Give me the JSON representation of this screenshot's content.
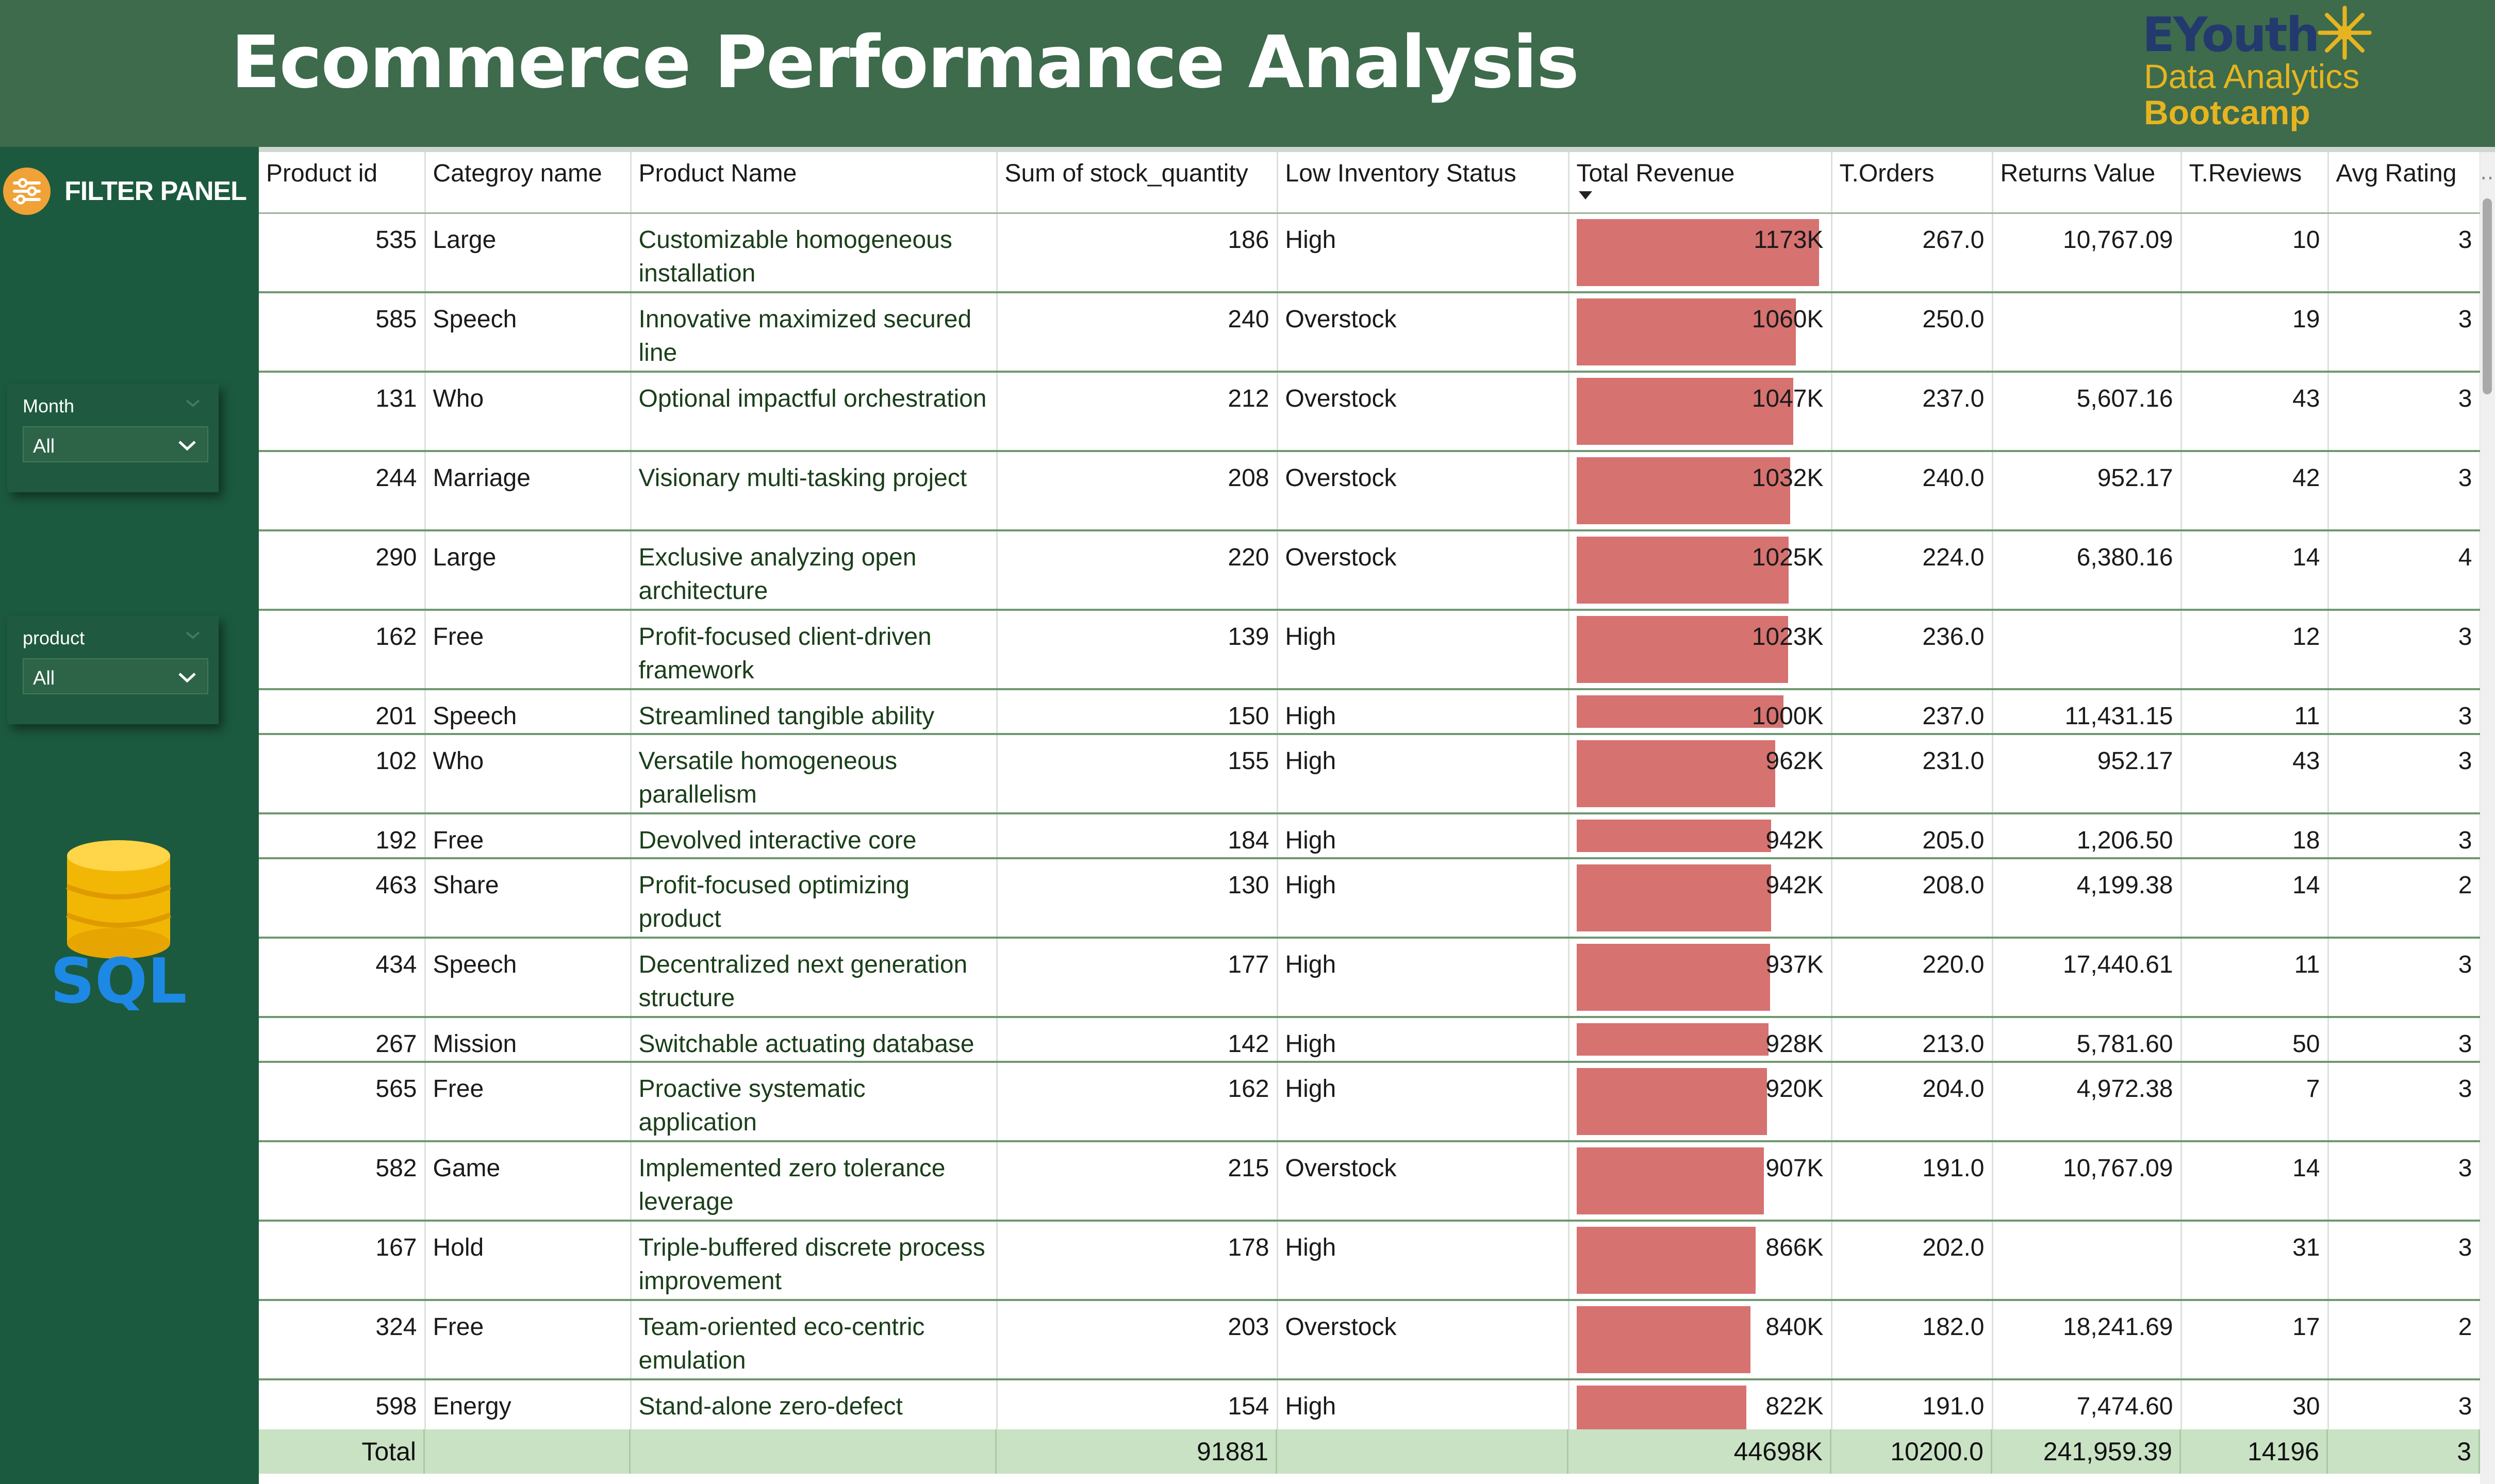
{
  "header": {
    "title": "Ecommerce Performance Analysis",
    "brand_name": "EYouth",
    "brand_line2": "Data Analytics",
    "brand_line3": "Bootcamp"
  },
  "sidebar": {
    "filter_title": "FILTER PANEL",
    "month_label": "Month",
    "month_value": "All",
    "product_label": "product",
    "product_value": "All",
    "sql_text": "SQL"
  },
  "table": {
    "columns": [
      "Product id",
      "Categroy name",
      "Product Name",
      "Sum of stock_quantity",
      "Low Inventory Status",
      "Total Revenue",
      "T.Orders",
      "Returns Value",
      "T.Reviews",
      "Avg Rating"
    ],
    "sorted_column": "Total Revenue",
    "sort_direction": "descending",
    "bar_color": "#d67270",
    "revenue_axis_max_k": 1173,
    "rows": [
      {
        "id": "535",
        "category": "Large",
        "name": "Customizable homogeneous installation",
        "stock": "186",
        "status": "High",
        "revenue": "1173K",
        "revenue_k": 1173,
        "orders": "267.0",
        "returns": "10,767.09",
        "reviews": "10",
        "rating": "3"
      },
      {
        "id": "585",
        "category": "Speech",
        "name": "Innovative maximized secured line",
        "stock": "240",
        "status": "Overstock",
        "revenue": "1060K",
        "revenue_k": 1060,
        "orders": "250.0",
        "returns": "",
        "reviews": "19",
        "rating": "3"
      },
      {
        "id": "131",
        "category": "Who",
        "name": "Optional impactful orchestration",
        "stock": "212",
        "status": "Overstock",
        "revenue": "1047K",
        "revenue_k": 1047,
        "orders": "237.0",
        "returns": "5,607.16",
        "reviews": "43",
        "rating": "3"
      },
      {
        "id": "244",
        "category": "Marriage",
        "name": "Visionary multi-tasking project",
        "stock": "208",
        "status": "Overstock",
        "revenue": "1032K",
        "revenue_k": 1032,
        "orders": "240.0",
        "returns": "952.17",
        "reviews": "42",
        "rating": "3"
      },
      {
        "id": "290",
        "category": "Large",
        "name": "Exclusive analyzing open architecture",
        "stock": "220",
        "status": "Overstock",
        "revenue": "1025K",
        "revenue_k": 1025,
        "orders": "224.0",
        "returns": "6,380.16",
        "reviews": "14",
        "rating": "4"
      },
      {
        "id": "162",
        "category": "Free",
        "name": "Profit-focused client-driven framework",
        "stock": "139",
        "status": "High",
        "revenue": "1023K",
        "revenue_k": 1023,
        "orders": "236.0",
        "returns": "",
        "reviews": "12",
        "rating": "3"
      },
      {
        "id": "201",
        "category": "Speech",
        "name": "Streamlined tangible ability",
        "stock": "150",
        "status": "High",
        "revenue": "1000K",
        "revenue_k": 1000,
        "orders": "237.0",
        "returns": "11,431.15",
        "reviews": "11",
        "rating": "3"
      },
      {
        "id": "102",
        "category": "Who",
        "name": "Versatile homogeneous parallelism",
        "stock": "155",
        "status": "High",
        "revenue": "962K",
        "revenue_k": 962,
        "orders": "231.0",
        "returns": "952.17",
        "reviews": "43",
        "rating": "3"
      },
      {
        "id": "192",
        "category": "Free",
        "name": "Devolved interactive core",
        "stock": "184",
        "status": "High",
        "revenue": "942K",
        "revenue_k": 942,
        "orders": "205.0",
        "returns": "1,206.50",
        "reviews": "18",
        "rating": "3"
      },
      {
        "id": "463",
        "category": "Share",
        "name": "Profit-focused optimizing product",
        "stock": "130",
        "status": "High",
        "revenue": "942K",
        "revenue_k": 942,
        "orders": "208.0",
        "returns": "4,199.38",
        "reviews": "14",
        "rating": "2"
      },
      {
        "id": "434",
        "category": "Speech",
        "name": "Decentralized next generation structure",
        "stock": "177",
        "status": "High",
        "revenue": "937K",
        "revenue_k": 937,
        "orders": "220.0",
        "returns": "17,440.61",
        "reviews": "11",
        "rating": "3"
      },
      {
        "id": "267",
        "category": "Mission",
        "name": "Switchable actuating database",
        "stock": "142",
        "status": "High",
        "revenue": "928K",
        "revenue_k": 928,
        "orders": "213.0",
        "returns": "5,781.60",
        "reviews": "50",
        "rating": "3"
      },
      {
        "id": "565",
        "category": "Free",
        "name": "Proactive systematic application",
        "stock": "162",
        "status": "High",
        "revenue": "920K",
        "revenue_k": 920,
        "orders": "204.0",
        "returns": "4,972.38",
        "reviews": "7",
        "rating": "3"
      },
      {
        "id": "582",
        "category": "Game",
        "name": "Implemented zero tolerance leverage",
        "stock": "215",
        "status": "Overstock",
        "revenue": "907K",
        "revenue_k": 907,
        "orders": "191.0",
        "returns": "10,767.09",
        "reviews": "14",
        "rating": "3"
      },
      {
        "id": "167",
        "category": "Hold",
        "name": "Triple-buffered discrete process improvement",
        "stock": "178",
        "status": "High",
        "revenue": "866K",
        "revenue_k": 866,
        "orders": "202.0",
        "returns": "",
        "reviews": "31",
        "rating": "3"
      },
      {
        "id": "324",
        "category": "Free",
        "name": "Team-oriented eco-centric emulation",
        "stock": "203",
        "status": "Overstock",
        "revenue": "840K",
        "revenue_k": 840,
        "orders": "182.0",
        "returns": "18,241.69",
        "reviews": "17",
        "rating": "2"
      },
      {
        "id": "598",
        "category": "Energy",
        "name": "Stand-alone zero-defect",
        "stock": "154",
        "status": "High",
        "revenue": "822K",
        "revenue_k": 822,
        "orders": "191.0",
        "returns": "7,474.60",
        "reviews": "30",
        "rating": "3"
      }
    ],
    "totals": {
      "label": "Total",
      "stock": "91881",
      "revenue": "44698K",
      "orders": "10200.0",
      "returns": "241,959.39",
      "reviews": "14196",
      "rating": "3"
    }
  }
}
